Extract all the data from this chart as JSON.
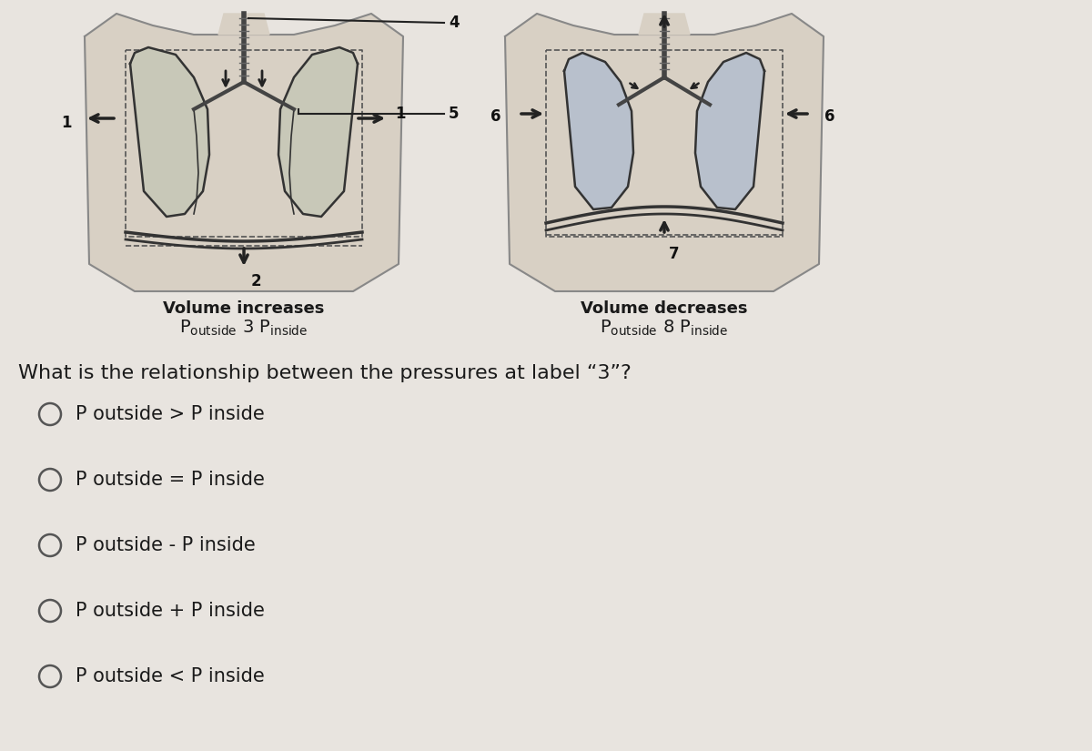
{
  "bg_color": "#e8e4df",
  "text_color": "#1a1a1a",
  "question": "What is the relationship between the pressures at label “3”?",
  "question_fontsize": 16,
  "options": [
    "P outside > P inside",
    "P outside = P inside",
    "P outside - P inside",
    "P outside + P inside",
    "P outside < P inside"
  ],
  "options_fontsize": 15,
  "left_caption_line1": "Volume increases",
  "right_caption_line1": "Volume decreases",
  "caption_fontsize": 13,
  "label_fontsize": 12,
  "circle_edgecolor": "#555555",
  "body_color": "#d8d0c4",
  "body_outline": "#888888",
  "lung_fill_left": "#c8c8b8",
  "lung_fill_right": "#b8c0cc",
  "lung_outline": "#333333",
  "trachea_color": "#444444",
  "diaphragm_color": "#333333",
  "arrow_color": "#222222",
  "line_color": "#222222"
}
